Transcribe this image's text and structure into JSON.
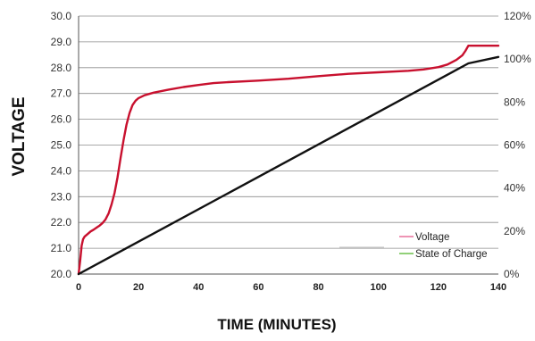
{
  "chart_data": {
    "type": "line",
    "xlabel": "TIME (MINUTES)",
    "ylabel": "VOLTAGE",
    "x_ticks": [
      0,
      20,
      40,
      60,
      80,
      100,
      120,
      140
    ],
    "xlim": [
      0,
      140
    ],
    "ylim": [
      20.0,
      30.0
    ],
    "y_ticks": [
      "20.0",
      "21.0",
      "22.0",
      "23.0",
      "24.0",
      "25.0",
      "26.0",
      "27.0",
      "28.0",
      "29.0",
      "30.0"
    ],
    "y2lim": [
      0,
      120
    ],
    "y2_ticks": [
      "0%",
      "20%",
      "40%",
      "60%",
      "80%",
      "100%",
      "120%"
    ],
    "grid": "horizontal",
    "legend_position": "bottom-right",
    "series": [
      {
        "name": "Voltage",
        "axis": "left",
        "color": "#c8102e",
        "legend_color": "#e8709a",
        "points": [
          [
            0,
            20.0
          ],
          [
            0.5,
            20.5
          ],
          [
            1,
            21.1
          ],
          [
            1.5,
            21.35
          ],
          [
            2,
            21.45
          ],
          [
            3,
            21.55
          ],
          [
            4,
            21.65
          ],
          [
            5,
            21.72
          ],
          [
            6,
            21.8
          ],
          [
            7,
            21.88
          ],
          [
            8,
            21.98
          ],
          [
            9,
            22.12
          ],
          [
            10,
            22.35
          ],
          [
            11,
            22.7
          ],
          [
            12,
            23.15
          ],
          [
            13,
            23.75
          ],
          [
            14,
            24.5
          ],
          [
            15,
            25.2
          ],
          [
            16,
            25.8
          ],
          [
            17,
            26.25
          ],
          [
            18,
            26.55
          ],
          [
            19,
            26.72
          ],
          [
            20,
            26.82
          ],
          [
            22,
            26.93
          ],
          [
            25,
            27.03
          ],
          [
            30,
            27.15
          ],
          [
            35,
            27.25
          ],
          [
            40,
            27.33
          ],
          [
            45,
            27.4
          ],
          [
            50,
            27.44
          ],
          [
            60,
            27.5
          ],
          [
            70,
            27.57
          ],
          [
            80,
            27.67
          ],
          [
            90,
            27.76
          ],
          [
            100,
            27.82
          ],
          [
            110,
            27.88
          ],
          [
            115,
            27.93
          ],
          [
            120,
            28.02
          ],
          [
            123,
            28.12
          ],
          [
            126,
            28.3
          ],
          [
            128,
            28.48
          ],
          [
            129,
            28.65
          ],
          [
            130,
            28.85
          ],
          [
            135,
            28.85
          ],
          [
            140,
            28.85
          ]
        ]
      },
      {
        "name": "State of Charge",
        "axis": "right",
        "color": "#111111",
        "legend_color": "#6cc04a",
        "points": [
          [
            0,
            0
          ],
          [
            130,
            98
          ],
          [
            140,
            101
          ]
        ]
      }
    ]
  }
}
